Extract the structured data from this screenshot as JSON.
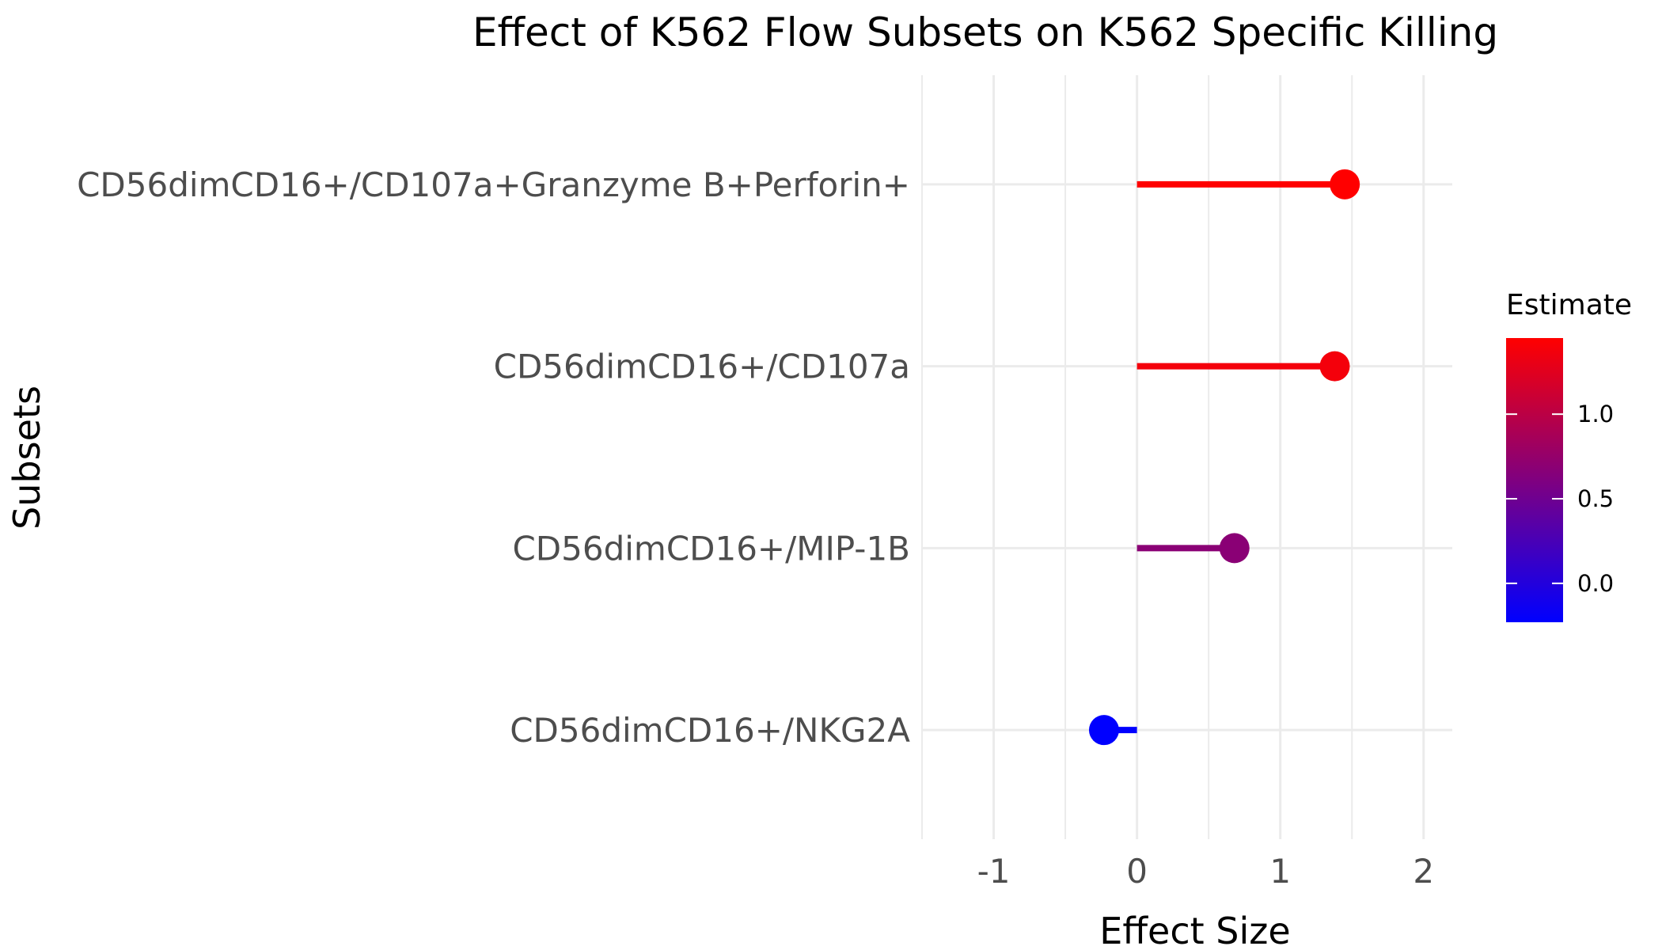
{
  "chart_data": {
    "type": "lollipop",
    "title": "Effect of K562 Flow Subsets on K562 Specific Killing",
    "xlabel": "Effect Size",
    "ylabel": "Subsets",
    "xlim": [
      -1.5,
      2.2
    ],
    "x_ticks": [
      -1,
      0,
      1,
      2
    ],
    "x_tick_labels": [
      "-1",
      "0",
      "1",
      "2"
    ],
    "grid": true,
    "categories": [
      "CD56dimCD16+/CD107a+Granzyme B+Perforin+",
      "CD56dimCD16+/CD107a",
      "CD56dimCD16+/MIP-1B",
      "CD56dimCD16+/NKG2A"
    ],
    "values": [
      1.45,
      1.38,
      0.68,
      -0.23
    ],
    "legend": {
      "title": "Estimate",
      "position": "right",
      "low": -0.23,
      "high": 1.45,
      "low_color": "#0000ff",
      "high_color": "#ff0000",
      "ticks": [
        0.0,
        0.5,
        1.0
      ],
      "tick_labels": [
        "0.0",
        "0.5",
        "1.0"
      ]
    }
  }
}
